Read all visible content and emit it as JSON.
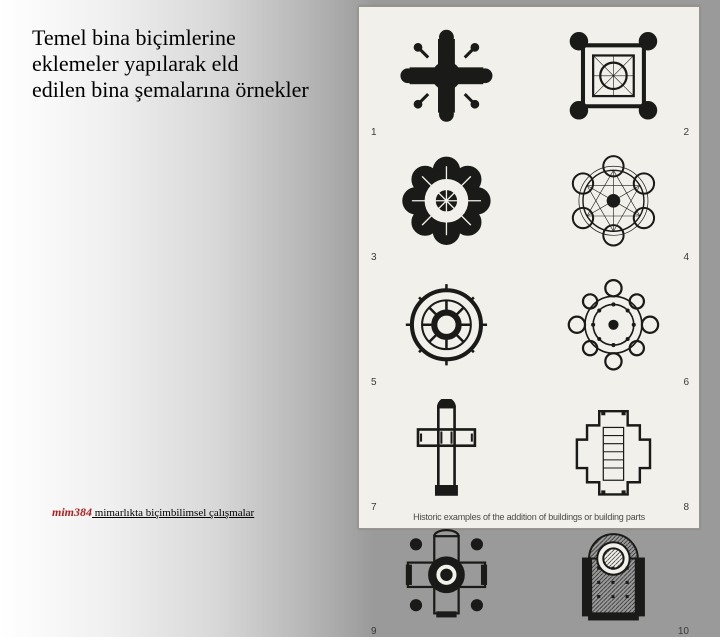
{
  "heading": "Temel bina biçimlerine eklemeler yapılarak eld\nedilen bina şemalarına örnekler",
  "footer": {
    "course": "mim384",
    "subtitle": " mimarlıkta biçimbilimsel çalışmalar"
  },
  "figure": {
    "caption": "Historic examples of the addition of buildings or building parts",
    "plans": [
      {
        "id": "1",
        "type": "cruciform-dense"
      },
      {
        "id": "2",
        "type": "square-corners"
      },
      {
        "id": "3",
        "type": "octalobe"
      },
      {
        "id": "4",
        "type": "hexalobe-triangles"
      },
      {
        "id": "5",
        "type": "ring-spokes"
      },
      {
        "id": "6",
        "type": "rotunda-chapels"
      },
      {
        "id": "7",
        "type": "latin-cross"
      },
      {
        "id": "8",
        "type": "stepped-hall"
      },
      {
        "id": "9",
        "type": "greek-cross-dome"
      },
      {
        "id": "10",
        "type": "basilica-dome"
      }
    ],
    "stroke": "#1a1a18",
    "hatch": "#1a1a18",
    "fill": "#1a1a18"
  },
  "colors": {
    "panel_bg": "#f2f0ea",
    "panel_border": "#9a968c",
    "course_color": "#b02020"
  }
}
